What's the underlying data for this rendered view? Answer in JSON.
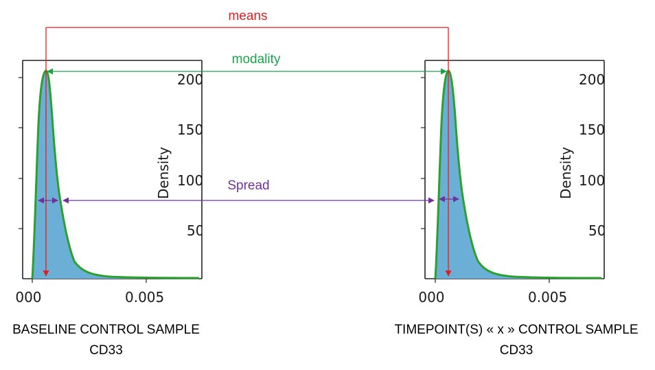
{
  "annotations": {
    "means": "means",
    "modality": "modality",
    "spread": "Spread"
  },
  "colors": {
    "means": "#e02020",
    "modality": "#1aa34a",
    "spread": "#7030a0",
    "fill": "#6baed6",
    "curve": "#2ca02c"
  },
  "panels": [
    {
      "x_ticks": [
        ".000",
        "0.005"
      ],
      "y_ticks": [
        "200",
        "150",
        "100",
        "50"
      ],
      "y_label": "Density",
      "caption_line1": "BASELINE CONTROL SAMPLE",
      "caption_line2": "CD33"
    },
    {
      "x_ticks": [
        ".000",
        "0.005"
      ],
      "y_ticks": [
        "200",
        "150",
        "100",
        "50"
      ],
      "y_label": "Density",
      "caption_line1": "TIMEPOINT(S) « x » CONTROL SAMPLE",
      "caption_line2": "CD33"
    }
  ]
}
